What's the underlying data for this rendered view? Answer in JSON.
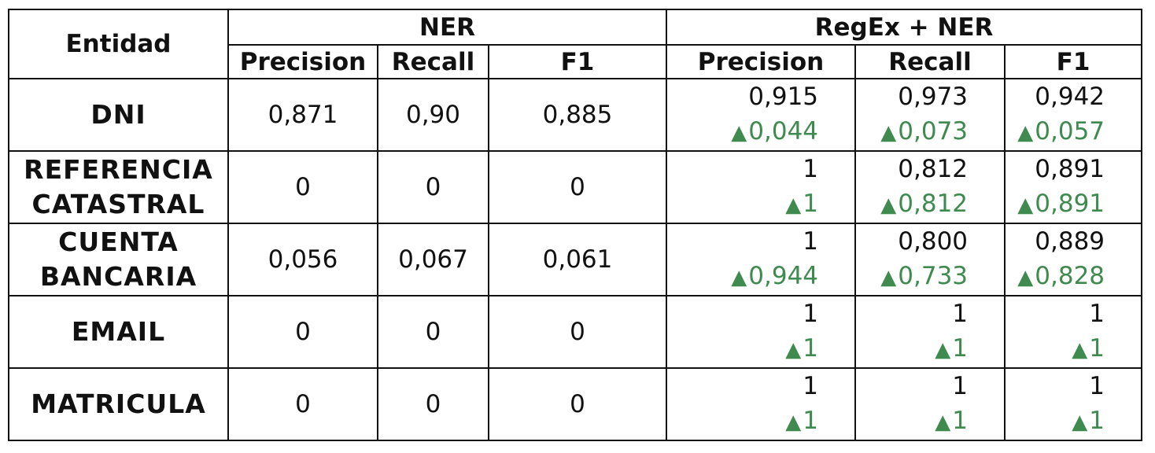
{
  "table": {
    "entity_header": "Entidad",
    "group_ner": "NER",
    "group_regex": "RegEx + NER",
    "sub_headers": [
      "Precision",
      "Recall",
      "F1",
      "Precision",
      "Recall",
      "F1"
    ],
    "delta_color": "#3f8a4e",
    "delta_icon": "up-triangle-icon",
    "rows": [
      {
        "entity": "DNI",
        "ner": [
          "0,871",
          "0,90",
          "0,885"
        ],
        "regex": [
          "0,915",
          "0,973",
          "0,942"
        ],
        "delta": [
          "0,044",
          "0,073",
          "0,057"
        ]
      },
      {
        "entity": "REFERENCIA CATASTRAL",
        "ner": [
          "0",
          "0",
          "0"
        ],
        "regex": [
          "1",
          "0,812",
          "0,891"
        ],
        "delta": [
          "1",
          "0,812",
          "0,891"
        ]
      },
      {
        "entity": "CUENTA BANCARIA",
        "ner": [
          "0,056",
          "0,067",
          "0,061"
        ],
        "regex": [
          "1",
          "0,800",
          "0,889"
        ],
        "delta": [
          "0,944",
          "0,733",
          "0,828"
        ]
      },
      {
        "entity": "EMAIL",
        "ner": [
          "0",
          "0",
          "0"
        ],
        "regex": [
          "1",
          "1",
          "1"
        ],
        "delta": [
          "1",
          "1",
          "1"
        ]
      },
      {
        "entity": "MATRICULA",
        "ner": [
          "0",
          "0",
          "0"
        ],
        "regex": [
          "1",
          "1",
          "1"
        ],
        "delta": [
          "1",
          "1",
          "1"
        ]
      }
    ]
  }
}
